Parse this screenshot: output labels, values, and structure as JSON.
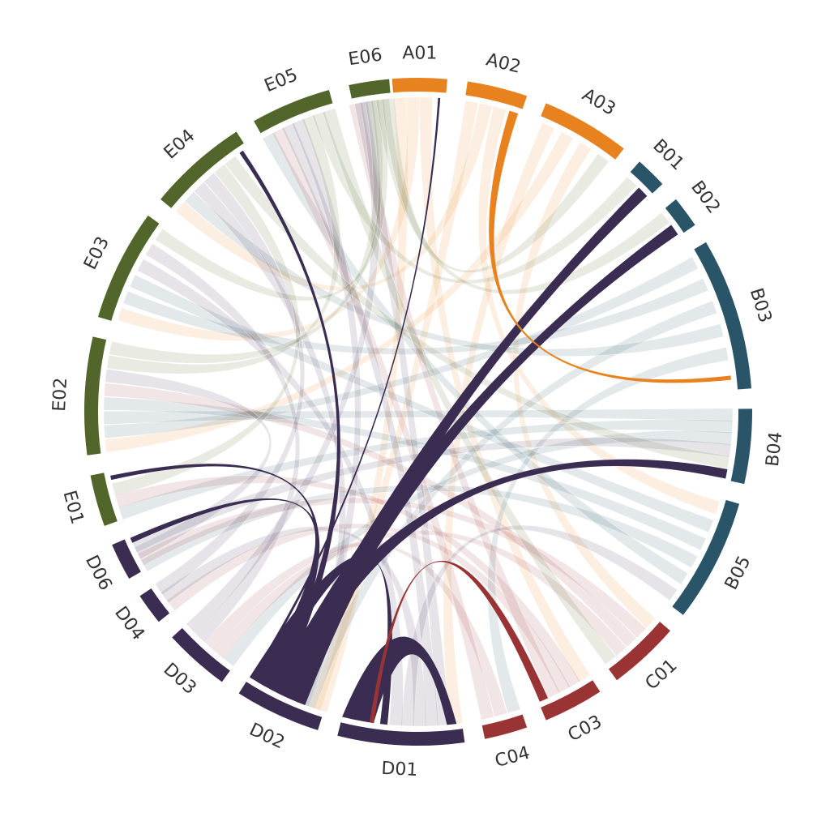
{
  "colors": {
    "A": "#e8821e",
    "B": "#2a5468",
    "C": "#9a3434",
    "D": "#3b2d52",
    "E": "#52652a"
  },
  "nodes": [
    {
      "id": "A01",
      "label": "A01",
      "group": "A",
      "start": -4.5,
      "end": 5.0
    },
    {
      "id": "A02",
      "label": "A02",
      "group": "A",
      "start": 8.5,
      "end": 19.0
    },
    {
      "id": "A03",
      "label": "A03",
      "group": "A",
      "start": 22.5,
      "end": 38.0
    },
    {
      "id": "B01",
      "label": "B01",
      "group": "B",
      "start": 41.5,
      "end": 47.0
    },
    {
      "id": "B02",
      "label": "B02",
      "group": "B",
      "start": 50.5,
      "end": 56.0
    },
    {
      "id": "B03",
      "label": "B03",
      "group": "B",
      "start": 59.5,
      "end": 86.0
    },
    {
      "id": "B04",
      "label": "B04",
      "group": "B",
      "start": 89.5,
      "end": 102.5
    },
    {
      "id": "B05",
      "label": "B05",
      "group": "B",
      "start": 106.0,
      "end": 127.5
    },
    {
      "id": "C01",
      "label": "C01",
      "group": "C",
      "start": 131.0,
      "end": 143.5
    },
    {
      "id": "C03",
      "label": "C03",
      "group": "C",
      "start": 147.0,
      "end": 157.5
    },
    {
      "id": "C04",
      "label": "C04",
      "group": "C",
      "start": 161.0,
      "end": 168.5
    },
    {
      "id": "D01",
      "label": "D01",
      "group": "D",
      "start": 172.0,
      "end": 194.0
    },
    {
      "id": "D02",
      "label": "D02",
      "group": "D",
      "start": 197.5,
      "end": 212.5
    },
    {
      "id": "D03",
      "label": "D03",
      "group": "D",
      "start": 216.0,
      "end": 227.5
    },
    {
      "id": "D04",
      "label": "D04",
      "group": "D",
      "start": 231.0,
      "end": 236.5
    },
    {
      "id": "D06",
      "label": "D06",
      "group": "D",
      "start": 240.0,
      "end": 246.5
    },
    {
      "id": "E01",
      "label": "E01",
      "group": "E",
      "start": 250.0,
      "end": 259.0
    },
    {
      "id": "E02",
      "label": "E02",
      "group": "E",
      "start": 262.5,
      "end": 283.0
    },
    {
      "id": "E03",
      "label": "E03",
      "group": "E",
      "start": 286.5,
      "end": 306.0
    },
    {
      "id": "E04",
      "label": "E04",
      "group": "E",
      "start": 309.5,
      "end": 327.0
    },
    {
      "id": "E05",
      "label": "E05",
      "group": "E",
      "start": 330.5,
      "end": 344.5
    },
    {
      "id": "E06",
      "label": "E06",
      "group": "E",
      "start": 348.0,
      "end": 355.0
    }
  ],
  "faded_links": [
    {
      "from": "A01",
      "to": "D02"
    },
    {
      "from": "A01",
      "to": "E03"
    },
    {
      "from": "A01",
      "to": "C03"
    },
    {
      "from": "A02",
      "to": "D02"
    },
    {
      "from": "A02",
      "to": "E04"
    },
    {
      "from": "A02",
      "to": "B05"
    },
    {
      "from": "A03",
      "to": "D01"
    },
    {
      "from": "A03",
      "to": "E02"
    },
    {
      "from": "A03",
      "to": "C01"
    },
    {
      "from": "B03",
      "to": "E02"
    },
    {
      "from": "B03",
      "to": "E03"
    },
    {
      "from": "B03",
      "to": "D02"
    },
    {
      "from": "B03",
      "to": "E04"
    },
    {
      "from": "B03",
      "to": "C04"
    },
    {
      "from": "B04",
      "to": "E02"
    },
    {
      "from": "B04",
      "to": "E01"
    },
    {
      "from": "B04",
      "to": "D03"
    },
    {
      "from": "B05",
      "to": "E03"
    },
    {
      "from": "B05",
      "to": "E02"
    },
    {
      "from": "B05",
      "to": "D06"
    },
    {
      "from": "B05",
      "to": "E05"
    },
    {
      "from": "C01",
      "to": "D06"
    },
    {
      "from": "C01",
      "to": "E02"
    },
    {
      "from": "C01",
      "to": "D03"
    },
    {
      "from": "C03",
      "to": "E01"
    },
    {
      "from": "C03",
      "to": "D04"
    },
    {
      "from": "C03",
      "to": "E06"
    },
    {
      "from": "C04",
      "to": "D03"
    },
    {
      "from": "C04",
      "to": "E05"
    },
    {
      "from": "D01",
      "to": "E06"
    },
    {
      "from": "D01",
      "to": "E05"
    },
    {
      "from": "D01",
      "to": "D04"
    },
    {
      "from": "D01",
      "to": "B05"
    },
    {
      "from": "D01",
      "to": "E03"
    },
    {
      "from": "D02",
      "to": "E04"
    },
    {
      "from": "D02",
      "to": "E05"
    },
    {
      "from": "D03",
      "to": "E03"
    },
    {
      "from": "D03",
      "to": "E06"
    },
    {
      "from": "D04",
      "to": "E04"
    },
    {
      "from": "D06",
      "to": "E02"
    },
    {
      "from": "D06",
      "to": "B04"
    },
    {
      "from": "E01",
      "to": "E04"
    },
    {
      "from": "E02",
      "to": "E05"
    },
    {
      "from": "E02",
      "to": "E06"
    },
    {
      "from": "E03",
      "to": "E06"
    },
    {
      "from": "E05",
      "to": "B01"
    },
    {
      "from": "E06",
      "to": "B02"
    },
    {
      "from": "E06",
      "to": "A03"
    },
    {
      "from": "E04",
      "to": "B04"
    },
    {
      "from": "E05",
      "to": "C01"
    }
  ],
  "highlighted_links": [
    {
      "from": "D02",
      "to": "B01",
      "weight": 10
    },
    {
      "from": "D02",
      "to": "B02",
      "weight": 10
    },
    {
      "from": "D02",
      "to": "B04",
      "weight": 8
    },
    {
      "from": "D02",
      "to": "E04",
      "weight": 3
    },
    {
      "from": "D02",
      "to": "E01",
      "weight": 3
    },
    {
      "from": "D02",
      "to": "D06",
      "weight": 4
    },
    {
      "from": "D02",
      "to": "D01",
      "weight": 6
    },
    {
      "from": "D02",
      "to": "A01",
      "weight": 1
    },
    {
      "from": "D01",
      "to": "D01",
      "weight": 13
    },
    {
      "from": "A02",
      "to": "B03",
      "weight": 3
    },
    {
      "from": "C03",
      "to": "D01",
      "weight": 3
    }
  ]
}
